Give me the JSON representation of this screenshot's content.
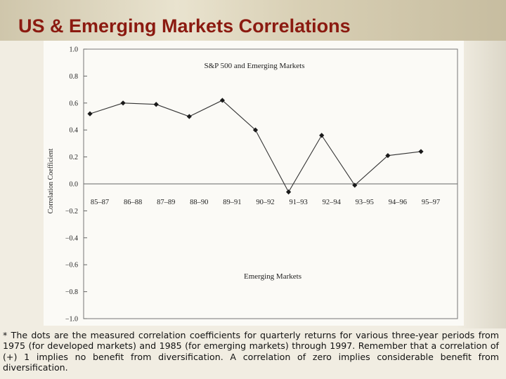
{
  "slide": {
    "title": "US & Emerging Markets Correlations",
    "footnote": "* The dots are the measured correlation coefficients for quarterly returns for various three-year periods from 1975 (for developed markets) and 1985 (for emerging markets) through 1997. Remember that a correlation of (+) 1 implies no benefit from diversification. A correlation of zero implies considerable benefit from diversification."
  },
  "chart_data": {
    "type": "line",
    "title": "S&P 500 and Emerging Markets",
    "xlabel": "Emerging Markets",
    "ylabel": "Correlation Coefficient",
    "ylim": [
      -1.0,
      1.0
    ],
    "yticks": [
      "1.0",
      "0.8",
      "0.6",
      "0.4",
      "0.2",
      "0.0",
      "−0.2",
      "−0.4",
      "−0.6",
      "−0.8",
      "−1.0"
    ],
    "categories": [
      "85–87",
      "86–88",
      "87–89",
      "88–90",
      "89–91",
      "90–92",
      "91–93",
      "92–94",
      "93–95",
      "94–96",
      "95–97"
    ],
    "values": [
      0.52,
      0.6,
      0.59,
      0.5,
      0.62,
      0.4,
      -0.06,
      0.36,
      -0.01,
      0.21,
      0.24
    ],
    "grid": false,
    "colors": {
      "line": "#333333",
      "marker": "#1a1a1a",
      "axis": "#555555"
    }
  }
}
